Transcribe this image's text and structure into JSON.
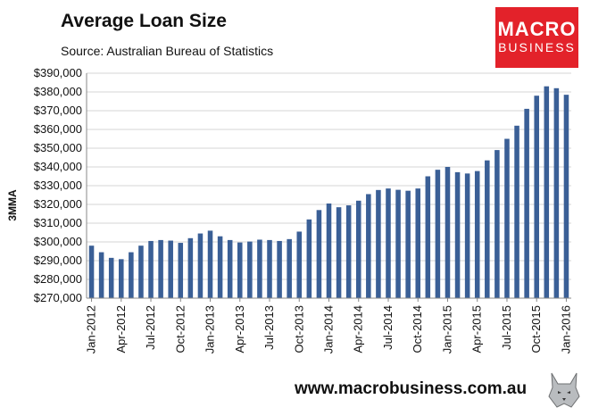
{
  "header": {
    "title": "Average Loan Size",
    "subtitle": "Source: Australian Bureau of Statistics"
  },
  "brand": {
    "line1": "MACRO",
    "line2": "BUSINESS",
    "color": "#e3222a",
    "icon": "wolf-icon"
  },
  "footer": {
    "website": "www.macrobusiness.com.au"
  },
  "chart_data": {
    "type": "bar",
    "title": "Average Loan Size",
    "subtitle": "Source: Australian Bureau of Statistics",
    "xlabel": "",
    "ylabel": "3MMA",
    "ylim": [
      270000,
      390000
    ],
    "yticks": [
      270000,
      280000,
      290000,
      300000,
      310000,
      320000,
      330000,
      340000,
      350000,
      360000,
      370000,
      380000,
      390000
    ],
    "ytick_labels": [
      "$270,000",
      "$280,000",
      "$290,000",
      "$300,000",
      "$310,000",
      "$320,000",
      "$330,000",
      "$340,000",
      "$350,000",
      "$360,000",
      "$370,000",
      "$380,000",
      "$390,000"
    ],
    "tick_labels": [
      "Jan-2012",
      "Apr-2012",
      "Jul-2012",
      "Oct-2012",
      "Jan-2013",
      "Apr-2013",
      "Jul-2013",
      "Oct-2013",
      "Jan-2014",
      "Apr-2014",
      "Jul-2014",
      "Oct-2014",
      "Jan-2015",
      "Apr-2015",
      "Jul-2015",
      "Oct-2015",
      "Jan-2016"
    ],
    "tick_every": 3,
    "grid": "horizontal",
    "legend": "none",
    "bar_color": "#3a5f96",
    "categories": [
      "Jan-2012",
      "Feb-2012",
      "Mar-2012",
      "Apr-2012",
      "May-2012",
      "Jun-2012",
      "Jul-2012",
      "Aug-2012",
      "Sep-2012",
      "Oct-2012",
      "Nov-2012",
      "Dec-2012",
      "Jan-2013",
      "Feb-2013",
      "Mar-2013",
      "Apr-2013",
      "May-2013",
      "Jun-2013",
      "Jul-2013",
      "Aug-2013",
      "Sep-2013",
      "Oct-2013",
      "Nov-2013",
      "Dec-2013",
      "Jan-2014",
      "Feb-2014",
      "Mar-2014",
      "Apr-2014",
      "May-2014",
      "Jun-2014",
      "Jul-2014",
      "Aug-2014",
      "Sep-2014",
      "Oct-2014",
      "Nov-2014",
      "Dec-2014",
      "Jan-2015",
      "Feb-2015",
      "Mar-2015",
      "Apr-2015",
      "May-2015",
      "Jun-2015",
      "Jul-2015",
      "Aug-2015",
      "Sep-2015",
      "Oct-2015",
      "Nov-2015",
      "Dec-2015",
      "Jan-2016"
    ],
    "values": [
      298000,
      294500,
      291500,
      290800,
      294500,
      298000,
      300500,
      301000,
      300700,
      299500,
      302000,
      304500,
      306000,
      303000,
      301000,
      299700,
      300200,
      301200,
      301000,
      300500,
      301500,
      305500,
      312000,
      317000,
      320500,
      318500,
      319500,
      322000,
      325500,
      327700,
      328500,
      327800,
      327300,
      328500,
      335000,
      338500,
      340000,
      337200,
      336500,
      337800,
      343500,
      349000,
      355000,
      362000,
      371000,
      378000,
      383000,
      382000,
      378500
    ]
  }
}
